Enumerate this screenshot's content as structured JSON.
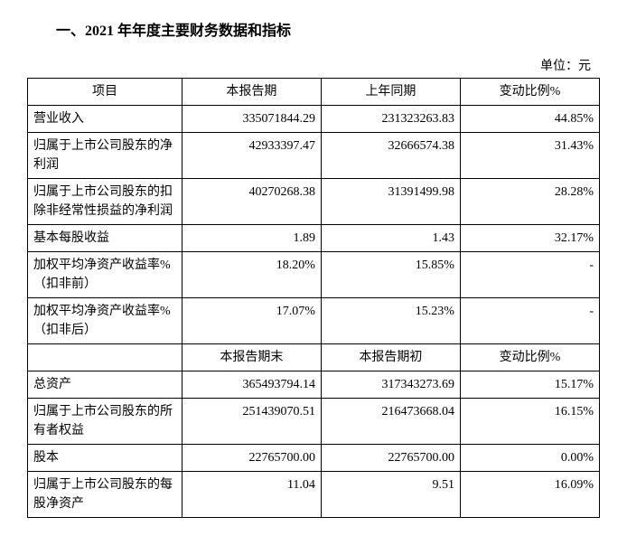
{
  "title": "一、2021 年年度主要财务数据和指标",
  "unit": "单位：元",
  "headers1": {
    "item": "项目",
    "current": "本报告期",
    "prior": "上年同期",
    "change": "变动比例%"
  },
  "headers2": {
    "current": "本报告期末",
    "prior": "本报告期初",
    "change": "变动比例%"
  },
  "rows1": [
    {
      "item": "营业收入",
      "current": "33,507,1844.29",
      "prior": "23,132,3263.83",
      "change": "44.85%"
    },
    {
      "item": "归属于上市公司股东的净利润",
      "current": "4,293,3397.47",
      "prior": "3,266,6574.38",
      "change": "31.43%"
    },
    {
      "item": "归属于上市公司股东的扣除非经常性损益的净利润",
      "current": "4,027,0268.38",
      "prior": "3,139,1499.98",
      "change": "28.28%"
    },
    {
      "item": "基本每股收益",
      "current": "1.89",
      "prior": "1.43",
      "change": "32.17%"
    },
    {
      "item": "加权平均净资产收益率%（扣非前）",
      "current": "18.20%",
      "prior": "15.85%",
      "change": "-"
    },
    {
      "item": "加权平均净资产收益率%（扣非后）",
      "current": "17.07%",
      "prior": "15.23%",
      "change": "-"
    }
  ],
  "rows2": [
    {
      "item": "总资产",
      "current": "36,549,3794.14",
      "prior": "31,734,3273.69",
      "change": "15.17%"
    },
    {
      "item": "归属于上市公司股东的所有者权益",
      "current": "25,143,9070.51",
      "prior": "21,647,3668.04",
      "change": "16.15%"
    },
    {
      "item": "股本",
      "current": "2,276,5700.00",
      "prior": "2,276,5700.00",
      "change": "0.00%"
    },
    {
      "item": "归属于上市公司股东的每股净资产",
      "current": "11.04",
      "prior": "9.51",
      "change": "16.09%"
    }
  ]
}
